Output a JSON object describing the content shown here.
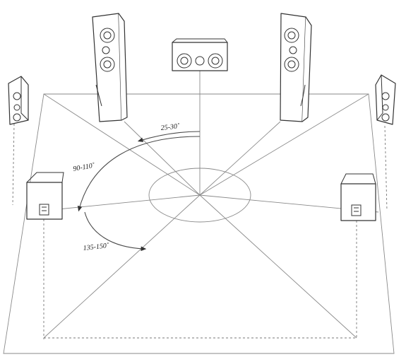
{
  "angle_labels": {
    "front": "25-30˚",
    "side": "90-110˚",
    "rear": "135-150˚"
  },
  "speakers": [
    {
      "name": "front-left-tower-speaker"
    },
    {
      "name": "center-speaker"
    },
    {
      "name": "front-right-tower-speaker"
    },
    {
      "name": "side-left-speaker"
    },
    {
      "name": "side-right-speaker"
    },
    {
      "name": "surround-left-speaker"
    },
    {
      "name": "surround-right-speaker"
    }
  ]
}
